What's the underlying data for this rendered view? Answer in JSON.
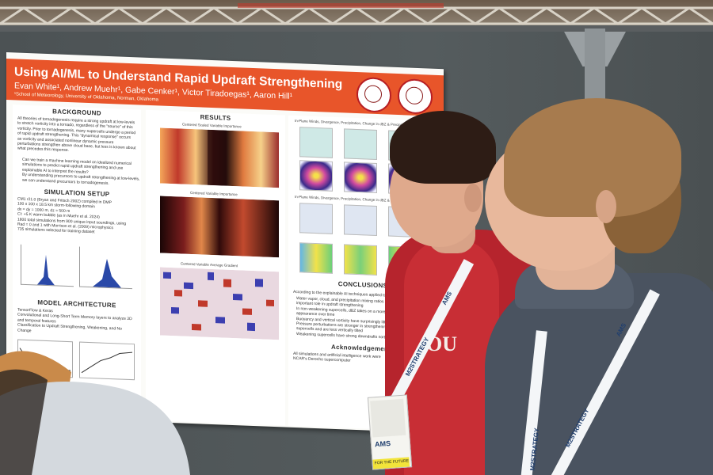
{
  "poster": {
    "title": "Using AI/ML to Understand Rapid Updraft Strengthening",
    "authors": "Evan White¹, Andrew Muehr¹, Gabe Cenker¹, Victor Tiradoegas¹, Aaron Hill¹",
    "affiliation": "¹School of Meteorology, University of Oklahoma, Norman, Oklahoma",
    "sections": {
      "background": "BACKGROUND",
      "simulation": "SIMULATION SETUP",
      "architecture": "MODEL ARCHITECTURE",
      "results": "RESULTS",
      "conclusions": "CONCLUSIONS",
      "acknowledgements": "Acknowledgements"
    },
    "background_text": [
      "All theories of tornadogenesis require a strong updraft at low-levels",
      "to stretch vorticity into a tornado, regardless of the \"source\" of this",
      "vorticity. Prior to tornadogenesis, many supercells undergo a period",
      "of rapid updraft strengthening. This \"dynamical response\" occurs",
      "as vorticity and associated nonlinear dynamic pressure",
      "perturbations strengthen above cloud base, but less is known about",
      "what precedes this response."
    ],
    "question_text": [
      "Can we train a machine learning model on idealized numerical",
      "simulations to predict rapid updraft strengthening and use",
      "explainable AI to interpret the results?",
      "By understanding precursors to updraft strengthening at low-levels,",
      "we can understand precursors to tornadogenesis."
    ],
    "simulation_text": [
      "CM1 r21.0 (Bryan and Fritsch 2002) compiled in DMP",
      "100 x 100 x 18.5 km storm-following domain",
      "dx = dy = 1000 m, dz = 500 m",
      "CI: +5 K warm bubble (as in Muehr et al. 2024)",
      "1800 total simulations from 900 unique input soundings, using",
      "Rad = 0 and 1 with Morrison et al. (2009) microphysics",
      "735 simulations selected for training dataset"
    ],
    "architecture_text": [
      "TensorFlow & Keras",
      "Convolutional and Long-Short Term Memory layers to analyze 3D",
      "and temporal features",
      "Classification to Updraft Strengthening, Weakening, and No",
      "Change"
    ],
    "results_captions": [
      "Centered Scaled Variable Importance",
      "Centered Variable Importance",
      "Centered Variable Average Gradient"
    ],
    "results_right_caption": "In-Plane Winds, Divergence, Precipitation, Change in dBZ & Precipitation",
    "results_right_caption2": "In-Plane Winds, Divergence, Precipitation, Change in dBZ & Precipitation",
    "conclusions_intro": "According to the explainable AI techniques applied to the trained learning model:",
    "conclusions_text": [
      "Water vapor, cloud, and precipitation mixing ratios play an",
      "important role in updraft strengthening",
      "In non-weakening supercells, dBZ takes on a more freq.",
      "appearance over time",
      "Buoyancy and vertical vorticity have surprisingly little",
      "Pressure perturbations are stronger in strengthening",
      "supercells and are less vertically tilted",
      "Weakening supercells have strong downdrafts north of"
    ],
    "acknowledgements_text": [
      "All simulations and artificial intelligence work were",
      "NCAR's Derecho supercomputer"
    ]
  },
  "badges": {
    "lanyard_brand": "AMS",
    "lanyard_strategy": "M2STRATEGY",
    "badge_label": "AMS",
    "badge_strip": "FOR THE FUTURE"
  },
  "shirt_logo": "OU",
  "colors": {
    "banner": "#e8552a",
    "ou_crimson": "#b6242d",
    "lanyard_text": "#1f3e6e"
  }
}
